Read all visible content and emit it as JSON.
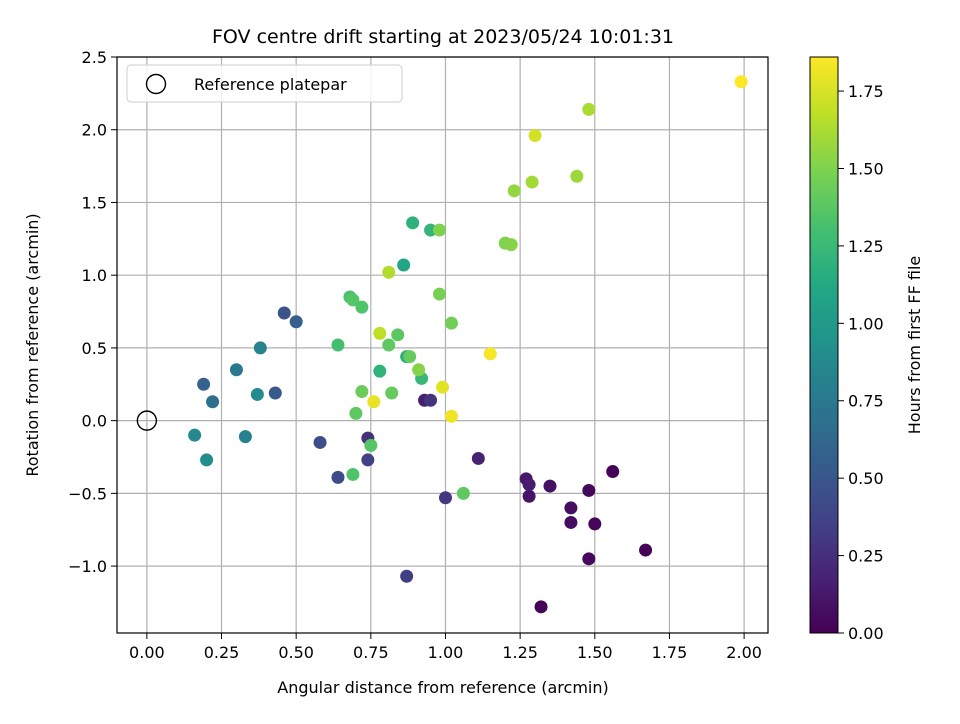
{
  "chart_data": {
    "type": "scatter",
    "title": "FOV centre drift starting at 2023/05/24 10:01:31",
    "xlabel": "Angular distance from reference (arcmin)",
    "ylabel": "Rotation from reference (arcmin)",
    "xlim": [
      -0.1,
      2.08
    ],
    "ylim": [
      -1.46,
      2.5
    ],
    "xticks": [
      0,
      0.25,
      0.5,
      0.75,
      1.0,
      1.25,
      1.5,
      1.75,
      2.0
    ],
    "xtick_labels": [
      "0.00",
      "0.25",
      "0.50",
      "0.75",
      "1.00",
      "1.25",
      "1.50",
      "1.75",
      "2.00"
    ],
    "yticks": [
      -1.0,
      -0.5,
      0.0,
      0.5,
      1.0,
      1.5,
      2.0,
      2.5
    ],
    "ytick_labels": [
      "−1.0",
      "−0.5",
      "0.0",
      "0.5",
      "1.0",
      "1.5",
      "2.0",
      "2.5"
    ],
    "grid": true,
    "legend": {
      "position": "upper-left",
      "entries": [
        "Reference platepar"
      ]
    },
    "reference_point": {
      "x": 0.0,
      "y": 0.0,
      "marker": "hollow-circle",
      "label": "Reference platepar"
    },
    "colormap": "viridis",
    "colorbar": {
      "label": "Hours from first FF file",
      "range": [
        0.0,
        1.86
      ],
      "ticks": [
        0.0,
        0.25,
        0.5,
        0.75,
        1.0,
        1.25,
        1.5,
        1.75
      ],
      "tick_labels": [
        "0.00",
        "0.25",
        "0.50",
        "0.75",
        "1.00",
        "1.25",
        "1.50",
        "1.75"
      ]
    },
    "points": [
      {
        "x": 1.32,
        "y": -1.28,
        "c": 0.02
      },
      {
        "x": 1.67,
        "y": -0.89,
        "c": 0.01
      },
      {
        "x": 1.48,
        "y": -0.95,
        "c": 0.05
      },
      {
        "x": 1.5,
        "y": -0.71,
        "c": 0.03
      },
      {
        "x": 1.42,
        "y": -0.7,
        "c": 0.06
      },
      {
        "x": 1.42,
        "y": -0.6,
        "c": 0.07
      },
      {
        "x": 1.48,
        "y": -0.48,
        "c": 0.04
      },
      {
        "x": 1.56,
        "y": -0.35,
        "c": 0.02
      },
      {
        "x": 1.35,
        "y": -0.45,
        "c": 0.08
      },
      {
        "x": 1.28,
        "y": -0.52,
        "c": 0.1
      },
      {
        "x": 1.27,
        "y": -0.4,
        "c": 0.12
      },
      {
        "x": 1.28,
        "y": -0.44,
        "c": 0.14
      },
      {
        "x": 1.11,
        "y": -0.26,
        "c": 0.18
      },
      {
        "x": 0.93,
        "y": 0.14,
        "c": 0.16
      },
      {
        "x": 0.95,
        "y": 0.14,
        "c": 0.28
      },
      {
        "x": 1.0,
        "y": -0.53,
        "c": 0.3
      },
      {
        "x": 0.87,
        "y": -1.07,
        "c": 0.34
      },
      {
        "x": 0.74,
        "y": -0.12,
        "c": 0.26
      },
      {
        "x": 0.74,
        "y": -0.27,
        "c": 0.36
      },
      {
        "x": 0.64,
        "y": -0.39,
        "c": 0.42
      },
      {
        "x": 0.58,
        "y": -0.15,
        "c": 0.44
      },
      {
        "x": 0.46,
        "y": 0.74,
        "c": 0.48
      },
      {
        "x": 0.5,
        "y": 0.68,
        "c": 0.56
      },
      {
        "x": 0.43,
        "y": 0.19,
        "c": 0.52
      },
      {
        "x": 0.19,
        "y": 0.25,
        "c": 0.58
      },
      {
        "x": 0.22,
        "y": 0.13,
        "c": 0.68
      },
      {
        "x": 0.3,
        "y": 0.35,
        "c": 0.74
      },
      {
        "x": 0.38,
        "y": 0.5,
        "c": 0.82
      },
      {
        "x": 0.37,
        "y": 0.18,
        "c": 0.88
      },
      {
        "x": 0.33,
        "y": -0.11,
        "c": 0.8
      },
      {
        "x": 0.16,
        "y": -0.1,
        "c": 0.86
      },
      {
        "x": 0.2,
        "y": -0.27,
        "c": 0.9
      },
      {
        "x": 0.86,
        "y": 1.07,
        "c": 1.1
      },
      {
        "x": 0.89,
        "y": 1.36,
        "c": 1.18
      },
      {
        "x": 0.95,
        "y": 1.31,
        "c": 1.22
      },
      {
        "x": 0.87,
        "y": 0.44,
        "c": 1.16
      },
      {
        "x": 0.78,
        "y": 0.34,
        "c": 1.2
      },
      {
        "x": 0.92,
        "y": 0.29,
        "c": 1.24
      },
      {
        "x": 0.68,
        "y": 0.85,
        "c": 1.32
      },
      {
        "x": 0.69,
        "y": 0.83,
        "c": 1.36
      },
      {
        "x": 0.72,
        "y": 0.78,
        "c": 1.34
      },
      {
        "x": 0.64,
        "y": 0.52,
        "c": 1.3
      },
      {
        "x": 0.81,
        "y": 0.52,
        "c": 1.4
      },
      {
        "x": 0.84,
        "y": 0.59,
        "c": 1.38
      },
      {
        "x": 0.88,
        "y": 0.44,
        "c": 1.42
      },
      {
        "x": 0.72,
        "y": 0.2,
        "c": 1.44
      },
      {
        "x": 0.82,
        "y": 0.19,
        "c": 1.42
      },
      {
        "x": 0.7,
        "y": 0.05,
        "c": 1.4
      },
      {
        "x": 0.75,
        "y": -0.17,
        "c": 1.36
      },
      {
        "x": 0.69,
        "y": -0.37,
        "c": 1.34
      },
      {
        "x": 1.06,
        "y": -0.5,
        "c": 1.4
      },
      {
        "x": 1.02,
        "y": 0.67,
        "c": 1.46
      },
      {
        "x": 0.98,
        "y": 0.87,
        "c": 1.48
      },
      {
        "x": 0.98,
        "y": 1.31,
        "c": 1.5
      },
      {
        "x": 0.91,
        "y": 0.35,
        "c": 1.52
      },
      {
        "x": 1.2,
        "y": 1.22,
        "c": 1.5
      },
      {
        "x": 1.22,
        "y": 1.21,
        "c": 1.52
      },
      {
        "x": 1.23,
        "y": 1.58,
        "c": 1.56
      },
      {
        "x": 1.29,
        "y": 1.64,
        "c": 1.6
      },
      {
        "x": 1.44,
        "y": 1.68,
        "c": 1.58
      },
      {
        "x": 1.48,
        "y": 2.14,
        "c": 1.62
      },
      {
        "x": 0.81,
        "y": 1.02,
        "c": 1.64
      },
      {
        "x": 0.78,
        "y": 0.6,
        "c": 1.68
      },
      {
        "x": 1.3,
        "y": 1.96,
        "c": 1.74
      },
      {
        "x": 0.76,
        "y": 0.13,
        "c": 1.8
      },
      {
        "x": 0.99,
        "y": 0.23,
        "c": 1.78
      },
      {
        "x": 1.02,
        "y": 0.03,
        "c": 1.82
      },
      {
        "x": 1.15,
        "y": 0.46,
        "c": 1.84
      },
      {
        "x": 1.99,
        "y": 2.33,
        "c": 1.86
      }
    ]
  }
}
